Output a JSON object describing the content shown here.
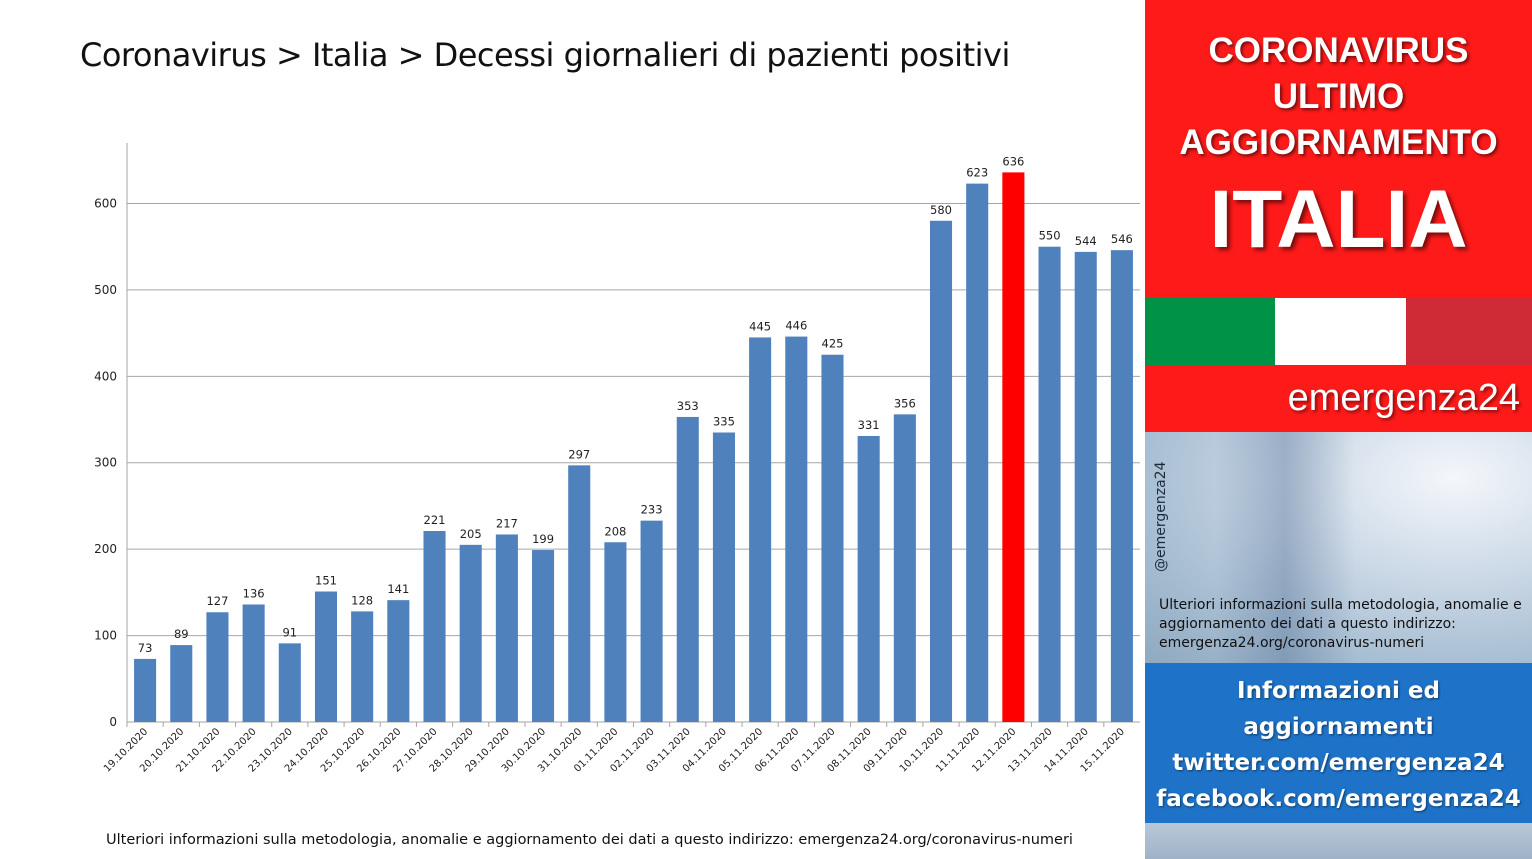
{
  "title": "Coronavirus > Italia > Decessi giornalieri di pazienti positivi",
  "footnote": "Ulteriori informazioni sulla metodologia, anomalie e aggiornamento dei dati a questo indirizzo: emergenza24.org/coronavirus-numeri",
  "chart_data": {
    "type": "bar",
    "title": "Coronavirus > Italia > Decessi giornalieri di pazienti positivi",
    "xlabel": "",
    "ylabel": "",
    "ylim": [
      0,
      670
    ],
    "yticks": [
      0,
      100,
      200,
      300,
      400,
      500,
      600
    ],
    "grid": true,
    "categories": [
      "19.10.2020",
      "20.10.2020",
      "21.10.2020",
      "22.10.2020",
      "23.10.2020",
      "24.10.2020",
      "25.10.2020",
      "26.10.2020",
      "27.10.2020",
      "28.10.2020",
      "29.10.2020",
      "30.10.2020",
      "31.10.2020",
      "01.11.2020",
      "02.11.2020",
      "03.11.2020",
      "04.11.2020",
      "05.11.2020",
      "06.11.2020",
      "07.11.2020",
      "08.11.2020",
      "09.11.2020",
      "10.11.2020",
      "11.11.2020",
      "12.11.2020",
      "13.11.2020",
      "14.11.2020",
      "15.11.2020"
    ],
    "values": [
      73,
      89,
      127,
      136,
      91,
      151,
      128,
      141,
      221,
      205,
      217,
      199,
      297,
      208,
      233,
      353,
      335,
      445,
      446,
      425,
      331,
      356,
      580,
      623,
      636,
      550,
      544,
      546
    ],
    "bar_color": "#4f81bd",
    "highlight_color": "#ff0000",
    "highlight_index": 24
  },
  "panel": {
    "header_line1": "CORONAVIRUS",
    "header_line2": "ULTIMO",
    "header_line3": "AGGIORNAMENTO",
    "header_big": "ITALIA",
    "brand": "emergenza24",
    "handle": "@emergenza24",
    "note": "Ulteriori informazioni sulla metodologia, anomalie e aggiornamento dei dati a questo indirizzo: emergenza24.org/coronavirus-numeri",
    "info_line1": "Informazioni ed",
    "info_line2": "aggiornamenti",
    "info_line3": "twitter.com/emergenza24",
    "info_line4": "facebook.com/emergenza24",
    "flag_colors": [
      "#009246",
      "#ffffff",
      "#ce2b37"
    ],
    "header_color": "#ff1a1a",
    "info_color": "#1e73c8"
  }
}
